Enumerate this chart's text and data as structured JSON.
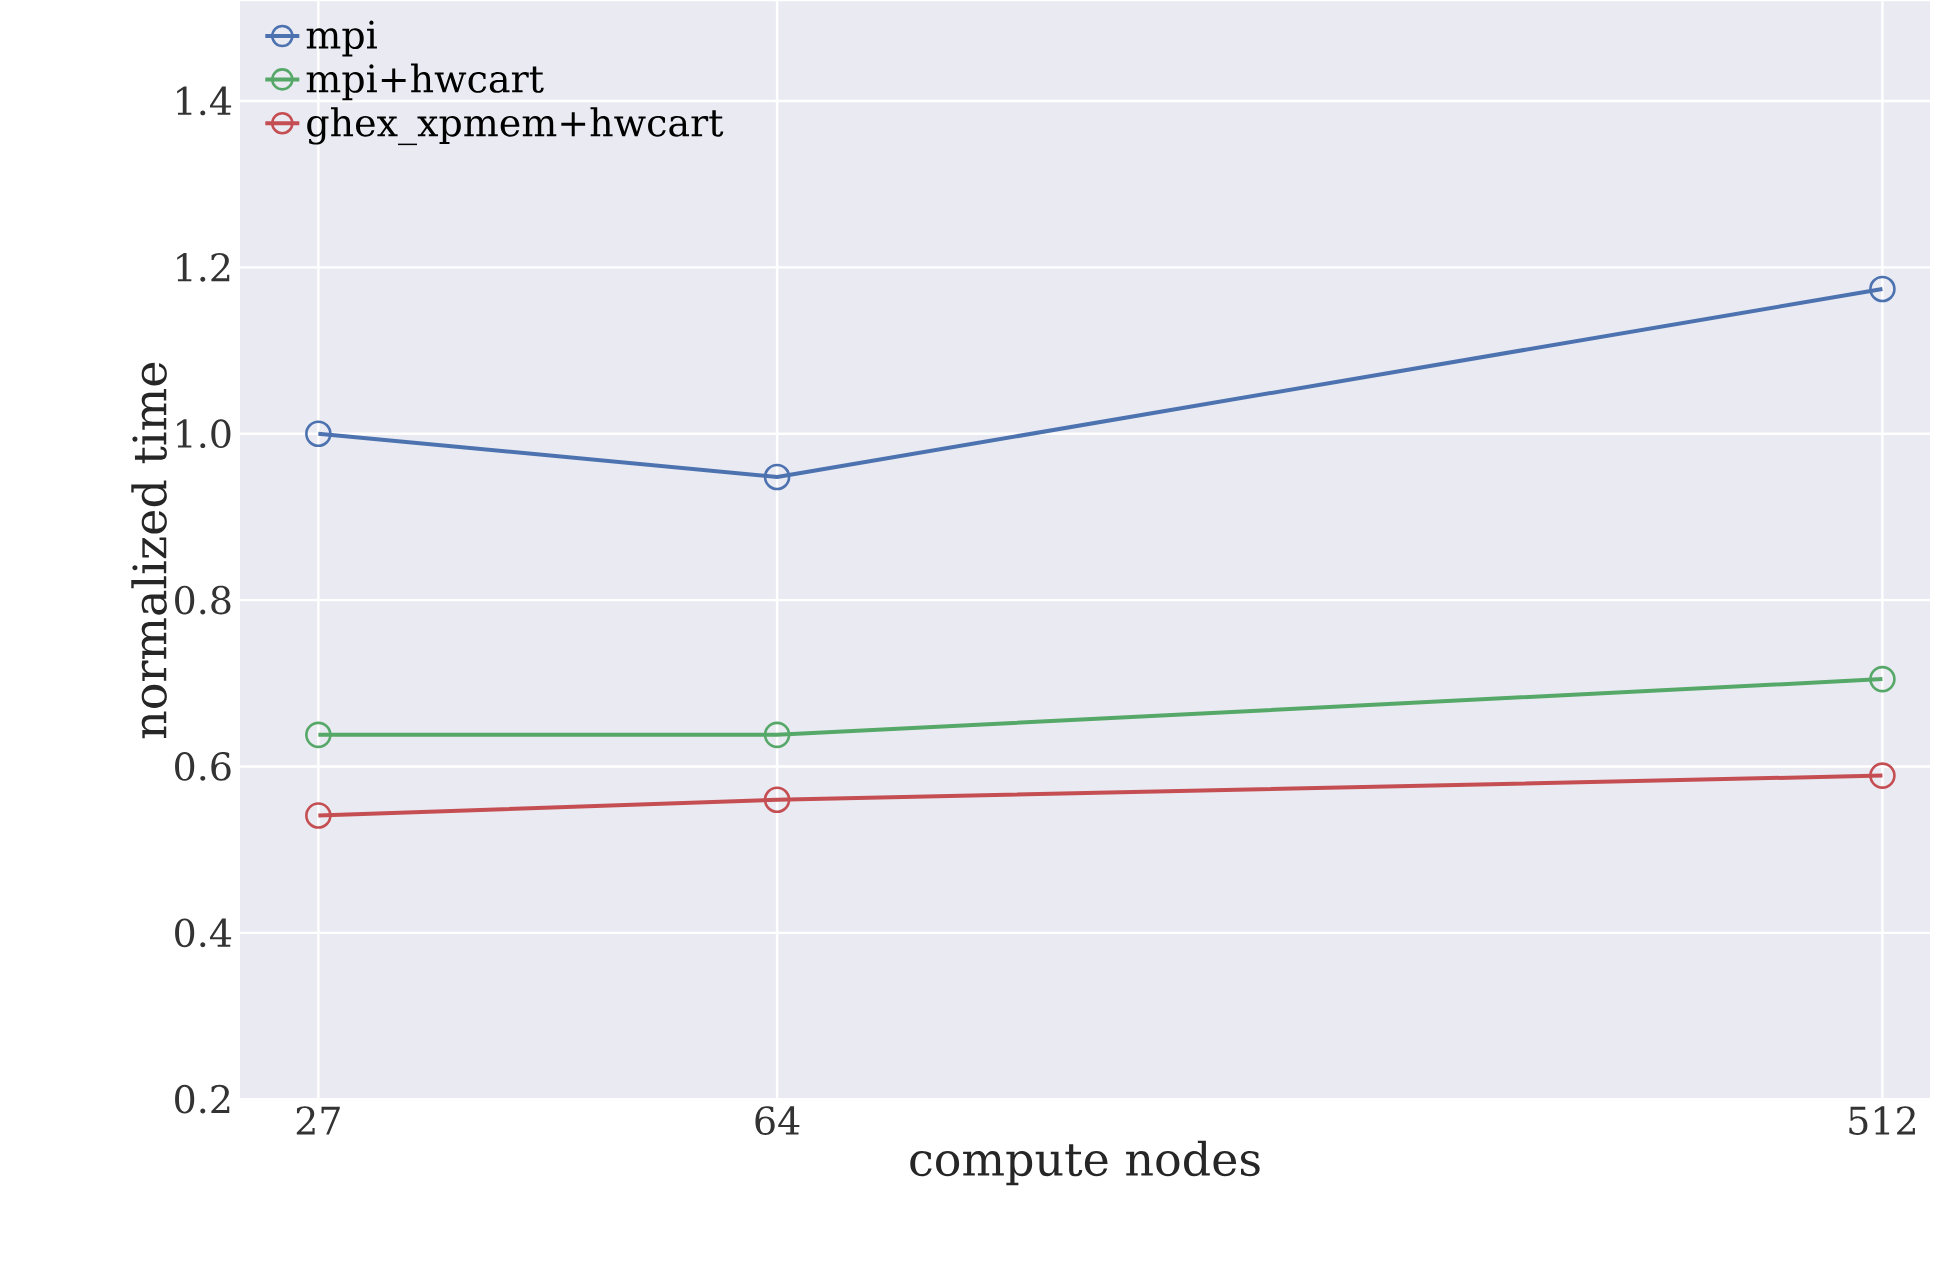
{
  "chart_data": {
    "type": "line",
    "xlabel": "compute nodes",
    "ylabel": "normalized time",
    "x": [
      27,
      64,
      512
    ],
    "log": "x",
    "series": [
      {
        "name": "mpi",
        "color": "#4c72b0",
        "values": [
          1.0,
          0.948,
          1.174
        ]
      },
      {
        "name": "mpi+hwcart",
        "color": "#55a868",
        "values": [
          0.638,
          0.638,
          0.705
        ]
      },
      {
        "name": "ghex_xpmem+hwcart",
        "color": "#c44e52",
        "values": [
          0.541,
          0.56,
          0.589
        ]
      }
    ],
    "xlim": [
      23.3,
      560
    ],
    "xticks": [
      27,
      64,
      512
    ],
    "ylim": [
      0.2,
      1.52
    ],
    "yticks": [
      {
        "value": 0.2,
        "label": "0.2"
      },
      {
        "value": 0.4,
        "label": "0.4"
      },
      {
        "value": 0.6,
        "label": "0.6"
      },
      {
        "value": 0.8,
        "label": "0.8"
      },
      {
        "value": 1.0,
        "label": "1.0"
      },
      {
        "value": 1.2,
        "label": "1.2"
      },
      {
        "value": 1.4,
        "label": "1.4"
      }
    ],
    "grid": true,
    "legend": "top left",
    "marker": "circle",
    "line_style": "solid"
  }
}
